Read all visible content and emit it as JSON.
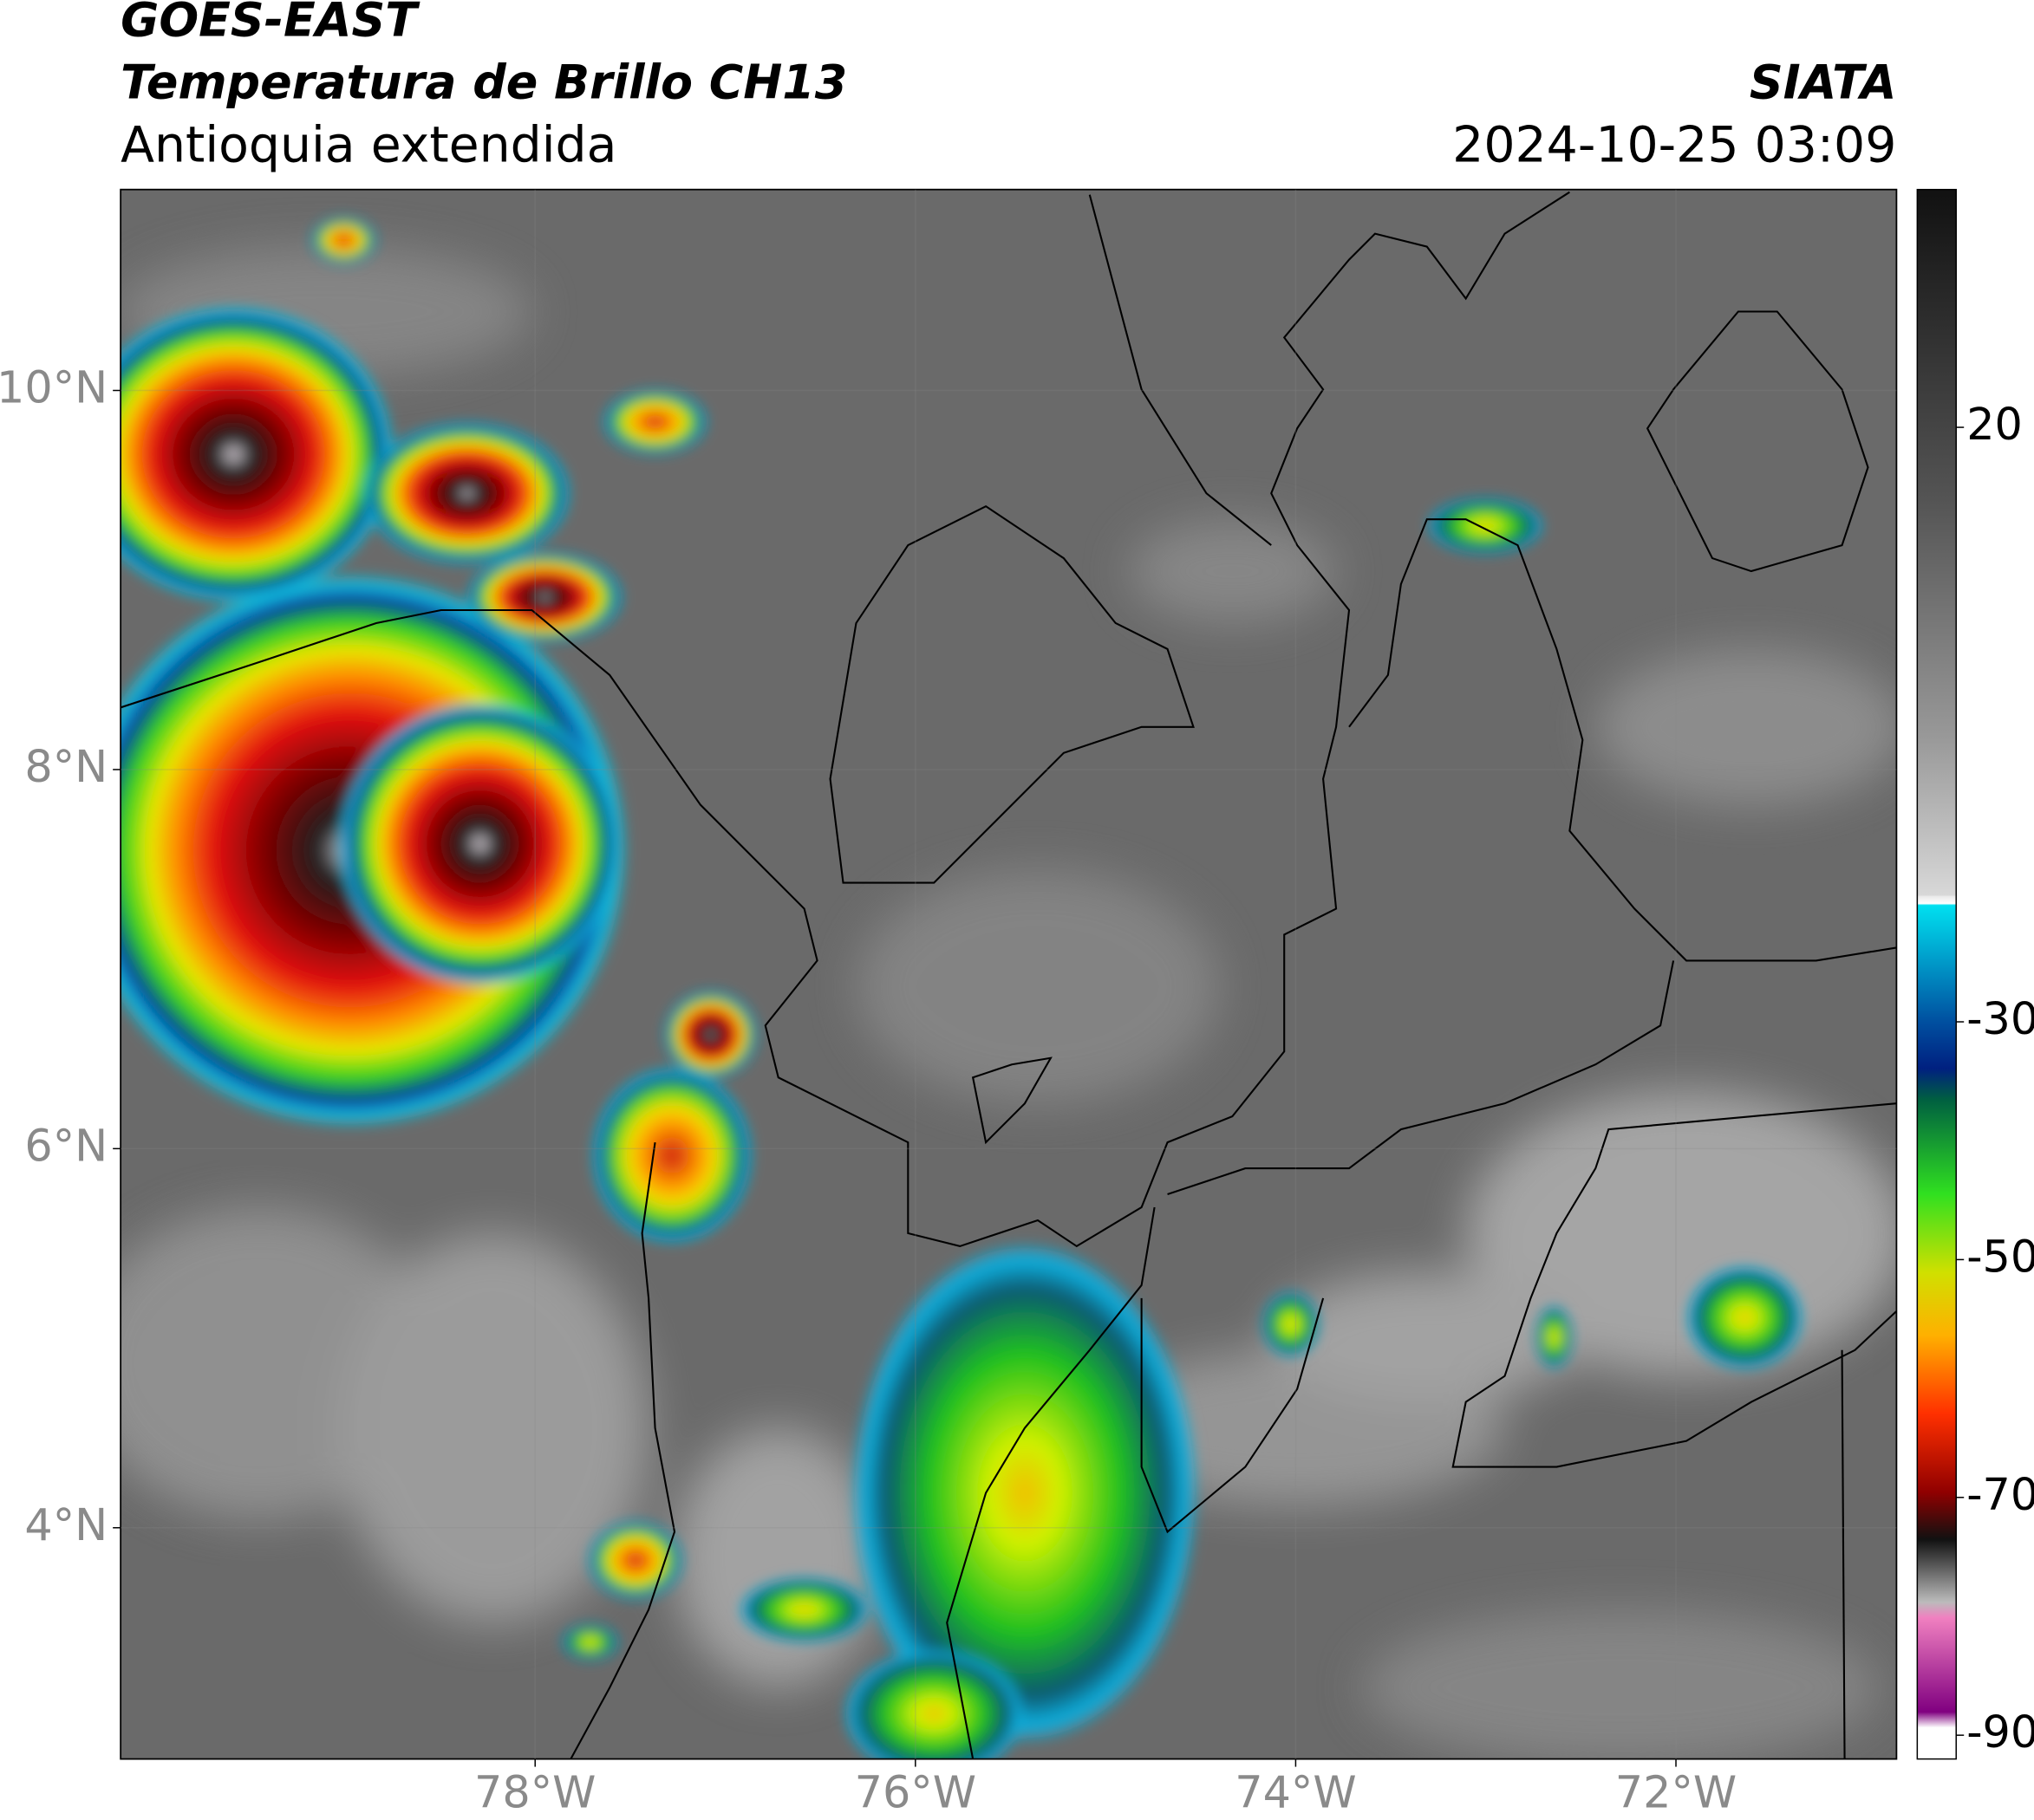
{
  "header": {
    "title": "GOES-EAST",
    "subtitle": "Temperatura de Brillo CH13",
    "region": "Antioquia extendida",
    "source": "SIATA",
    "datetime": "2024-10-25 03:09"
  },
  "map": {
    "xlim": [
      -80.18,
      -70.84
    ],
    "ylim": [
      2.78,
      11.06
    ],
    "xticks": [
      {
        "value": -78,
        "label": "78°W"
      },
      {
        "value": -76,
        "label": "76°W"
      },
      {
        "value": -74,
        "label": "74°W"
      },
      {
        "value": -72,
        "label": "72°W"
      }
    ],
    "yticks": [
      {
        "value": 10,
        "label": "10°N"
      },
      {
        "value": 8,
        "label": "8°N"
      },
      {
        "value": 6,
        "label": "6°N"
      },
      {
        "value": 4,
        "label": "4°N"
      }
    ]
  },
  "colorbar": {
    "lim": [
      -92,
      40
    ],
    "ticks": [
      20,
      -30,
      -50,
      -70,
      -90
    ]
  }
}
